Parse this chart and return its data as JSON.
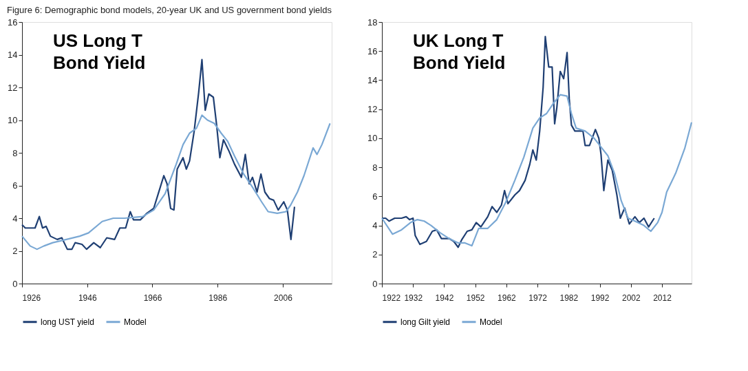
{
  "chart_data": [
    {
      "type": "line",
      "title": "Figure 6: Demographic bond models, 20-year UK and US government bond yields",
      "annotations": [
        "US Long T Bond Yield"
      ],
      "xlim": [
        1926,
        2021
      ],
      "xticks": [
        1926,
        1946,
        1966,
        1986,
        2006
      ],
      "ylim": [
        0,
        16
      ],
      "yticks": [
        0,
        2,
        4,
        6,
        8,
        10,
        12,
        14,
        16
      ],
      "grid": false,
      "legend": "bottom",
      "marker": "none",
      "line_style": "solid",
      "series": [
        {
          "name": "long UST yield",
          "color": "#1f3f73",
          "x": [
            1926,
            1927,
            1928,
            1930,
            1931.3,
            1932.3,
            1933.4,
            1934.7,
            1936.8,
            1938.2,
            1939.9,
            1941.3,
            1942.3,
            1944.4,
            1945.8,
            1948,
            1950,
            1952,
            1954.4,
            1956,
            1957.8,
            1959.2,
            1960.2,
            1962.3,
            1964.3,
            1966.4,
            1967.8,
            1969.5,
            1970.5,
            1971.6,
            1972.6,
            1973.6,
            1975.4,
            1976.4,
            1977.4,
            1978.8,
            1980.2,
            1981.2,
            1982.2,
            1983.3,
            1984.7,
            1985.7,
            1986.7,
            1987.8,
            1989.5,
            1991.2,
            1993.3,
            1994.5,
            1995.7,
            1996.7,
            1998.1,
            1999.3,
            2000.5,
            2001.9,
            2003.2,
            2004.6,
            2006.3,
            2007.4,
            2008.5,
            2009.6
          ],
          "values": [
            3.6,
            3.4,
            3.4,
            3.4,
            4.1,
            3.4,
            3.5,
            2.9,
            2.7,
            2.8,
            2.1,
            2.1,
            2.5,
            2.4,
            2.1,
            2.5,
            2.2,
            2.8,
            2.7,
            3.4,
            3.4,
            4.4,
            3.9,
            3.9,
            4.3,
            4.6,
            5.5,
            6.6,
            6.1,
            4.6,
            4.5,
            7.0,
            7.7,
            7.0,
            7.5,
            9.3,
            11.7,
            13.7,
            10.6,
            11.6,
            11.4,
            9.7,
            7.7,
            8.8,
            8.1,
            7.3,
            6.5,
            7.9,
            6.1,
            6.5,
            5.6,
            6.7,
            5.6,
            5.2,
            5.1,
            4.5,
            5.0,
            4.5,
            2.7,
            4.7
          ]
        },
        {
          "name": "Model",
          "color": "#7aa8d4",
          "x": [
            1926,
            1928.5,
            1930.6,
            1932.7,
            1935.4,
            1939.6,
            1943.7,
            1946.4,
            1950.6,
            1954,
            1957.5,
            1963,
            1966.4,
            1969.9,
            1973.3,
            1975.4,
            1977.4,
            1979.5,
            1981.2,
            1982.9,
            1985,
            1987.1,
            1989.1,
            1991.2,
            1994,
            1996.7,
            1999.5,
            2001.5,
            2004.3,
            2007,
            2008.4,
            2010.5,
            2012.5,
            2015.3,
            2016.5,
            2018,
            2020.5
          ],
          "values": [
            2.9,
            2.3,
            2.1,
            2.3,
            2.5,
            2.7,
            2.9,
            3.1,
            3.8,
            4.0,
            4.0,
            4.1,
            4.5,
            5.5,
            7.3,
            8.5,
            9.2,
            9.5,
            10.3,
            10.0,
            9.8,
            9.2,
            8.7,
            7.8,
            6.7,
            5.9,
            5.0,
            4.4,
            4.3,
            4.4,
            4.8,
            5.6,
            6.6,
            8.3,
            7.9,
            8.5,
            9.8
          ]
        }
      ]
    },
    {
      "type": "line",
      "annotations": [
        "UK Long T Bond Yield"
      ],
      "xlim": [
        1922,
        2021.5
      ],
      "xticks": [
        1922,
        1932,
        1942,
        1952,
        1962,
        1972,
        1982,
        1992,
        2002,
        2012
      ],
      "ylim": [
        0,
        18
      ],
      "yticks": [
        0,
        2,
        4,
        6,
        8,
        10,
        12,
        14,
        16,
        18
      ],
      "grid": false,
      "legend": "bottom",
      "marker": "none",
      "line_style": "solid",
      "series": [
        {
          "name": "long Gilt yield",
          "color": "#1f3f73",
          "x": [
            1922,
            1923.2,
            1924.3,
            1926.1,
            1928.3,
            1929.8,
            1930.9,
            1932,
            1932.7,
            1934.2,
            1936.3,
            1938.2,
            1939.6,
            1941.1,
            1943.6,
            1945.1,
            1946.5,
            1947.6,
            1949.4,
            1950.9,
            1952.3,
            1953.8,
            1956,
            1957.4,
            1958.9,
            1960.4,
            1961.4,
            1962.5,
            1964.7,
            1966.2,
            1968,
            1969.5,
            1970.5,
            1971.6,
            1972.7,
            1973.8,
            1974.5,
            1975.6,
            1976.7,
            1977.5,
            1978.2,
            1979.3,
            1980.4,
            1981.5,
            1982.2,
            1982.9,
            1984,
            1986.6,
            1987.3,
            1988.7,
            1990.6,
            1991.7,
            1992.4,
            1993.3,
            1994.6,
            1996,
            1997.5,
            1998.6,
            2000,
            2001.5,
            2003.3,
            2004.7,
            2006.2,
            2007.7,
            2009.5
          ],
          "values": [
            4.5,
            4.5,
            4.3,
            4.5,
            4.5,
            4.6,
            4.4,
            4.5,
            3.3,
            2.7,
            2.9,
            3.6,
            3.7,
            3.1,
            3.1,
            2.9,
            2.5,
            3.0,
            3.6,
            3.7,
            4.2,
            3.9,
            4.6,
            5.3,
            4.9,
            5.4,
            6.4,
            5.5,
            6.1,
            6.4,
            7.1,
            8.2,
            9.2,
            8.5,
            10.5,
            13.5,
            17.0,
            14.9,
            14.9,
            11.0,
            12.1,
            14.6,
            14.1,
            15.9,
            12.7,
            10.9,
            10.5,
            10.5,
            9.5,
            9.5,
            10.6,
            10.0,
            8.9,
            6.4,
            8.5,
            7.8,
            6.1,
            4.5,
            5.2,
            4.1,
            4.6,
            4.2,
            4.5,
            3.9,
            4.5
          ]
        },
        {
          "name": "Model",
          "color": "#7aa8d4",
          "x": [
            1922,
            1925.4,
            1928.3,
            1931.2,
            1933.4,
            1935.6,
            1937.8,
            1940.7,
            1943.6,
            1946.5,
            1948.7,
            1950.9,
            1953.1,
            1956,
            1958.9,
            1961.8,
            1964.7,
            1967.6,
            1970.5,
            1972.7,
            1974.9,
            1977.1,
            1979.3,
            1981.5,
            1982.9,
            1984.4,
            1987.3,
            1990.2,
            1992.4,
            1994.6,
            1996.7,
            1998.9,
            2001.1,
            2003.3,
            2006.2,
            2008.4,
            2010.6,
            2012,
            2013.5,
            2016.4,
            2019.3,
            2021.5
          ],
          "values": [
            4.5,
            3.4,
            3.7,
            4.2,
            4.4,
            4.3,
            4.0,
            3.5,
            3.1,
            2.8,
            2.8,
            2.6,
            3.8,
            3.8,
            4.4,
            5.6,
            7.1,
            8.7,
            10.7,
            11.4,
            11.7,
            12.4,
            13.0,
            12.9,
            11.7,
            10.7,
            10.5,
            10.0,
            9.4,
            8.8,
            7.6,
            5.7,
            4.5,
            4.3,
            4.0,
            3.6,
            4.2,
            4.9,
            6.3,
            7.6,
            9.3,
            11.1
          ]
        }
      ]
    }
  ]
}
